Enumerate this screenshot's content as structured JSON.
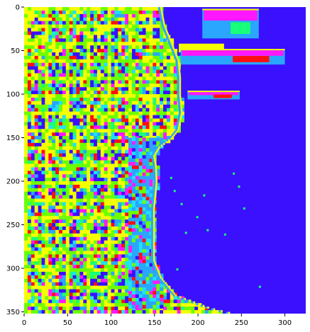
{
  "chart_data": {
    "type": "heatmap",
    "title": "",
    "xlabel": "",
    "ylabel": "",
    "xlim": [
      0,
      324
    ],
    "ylim": [
      352,
      0
    ],
    "x_ticks": [
      0,
      50,
      100,
      150,
      200,
      250,
      300
    ],
    "y_ticks": [
      0,
      50,
      100,
      150,
      200,
      250,
      300,
      350
    ],
    "grid": false,
    "colormap": "hsv (categorical segmentation)",
    "colors": {
      "water": "#3a10ff",
      "yellow": "#f6ff00",
      "green": "#6cff00",
      "cyan": "#20e0ff",
      "sky_blue": "#2aa6ff",
      "red": "#ff1010",
      "magenta": "#ff18ff",
      "spring_green": "#18ff7a"
    },
    "regions": {
      "shoreline_x_by_y": [
        [
          0,
          158
        ],
        [
          20,
          162
        ],
        [
          40,
          170
        ],
        [
          60,
          178
        ],
        [
          80,
          180
        ],
        [
          100,
          180
        ],
        [
          120,
          182
        ],
        [
          140,
          178
        ],
        [
          150,
          170
        ],
        [
          160,
          156
        ],
        [
          170,
          150
        ],
        [
          180,
          152
        ],
        [
          200,
          153
        ],
        [
          230,
          150
        ],
        [
          260,
          150
        ],
        [
          290,
          150
        ],
        [
          310,
          158
        ],
        [
          330,
          175
        ],
        [
          345,
          215
        ],
        [
          352,
          245
        ]
      ],
      "harbor_pier": {
        "x": [
          178,
          230
        ],
        "y": [
          42,
          52
        ]
      },
      "breakwater_islands": [
        {
          "x": [
            205,
            270
          ],
          "y": [
            2,
            36
          ]
        },
        {
          "x": [
            180,
            300
          ],
          "y": [
            48,
            66
          ]
        },
        {
          "x": [
            188,
            248
          ],
          "y": [
            96,
            106
          ]
        }
      ],
      "lakefront_park_band": {
        "x": [
          120,
          160
        ],
        "y": [
          150,
          345
        ]
      },
      "scattered_points": [
        [
          168,
          195
        ],
        [
          172,
          210
        ],
        [
          180,
          225
        ],
        [
          198,
          240
        ],
        [
          210,
          255
        ],
        [
          185,
          258
        ],
        [
          240,
          190
        ],
        [
          246,
          205
        ],
        [
          206,
          215
        ],
        [
          252,
          230
        ],
        [
          175,
          300
        ],
        [
          230,
          260
        ],
        [
          270,
          320
        ]
      ]
    }
  }
}
